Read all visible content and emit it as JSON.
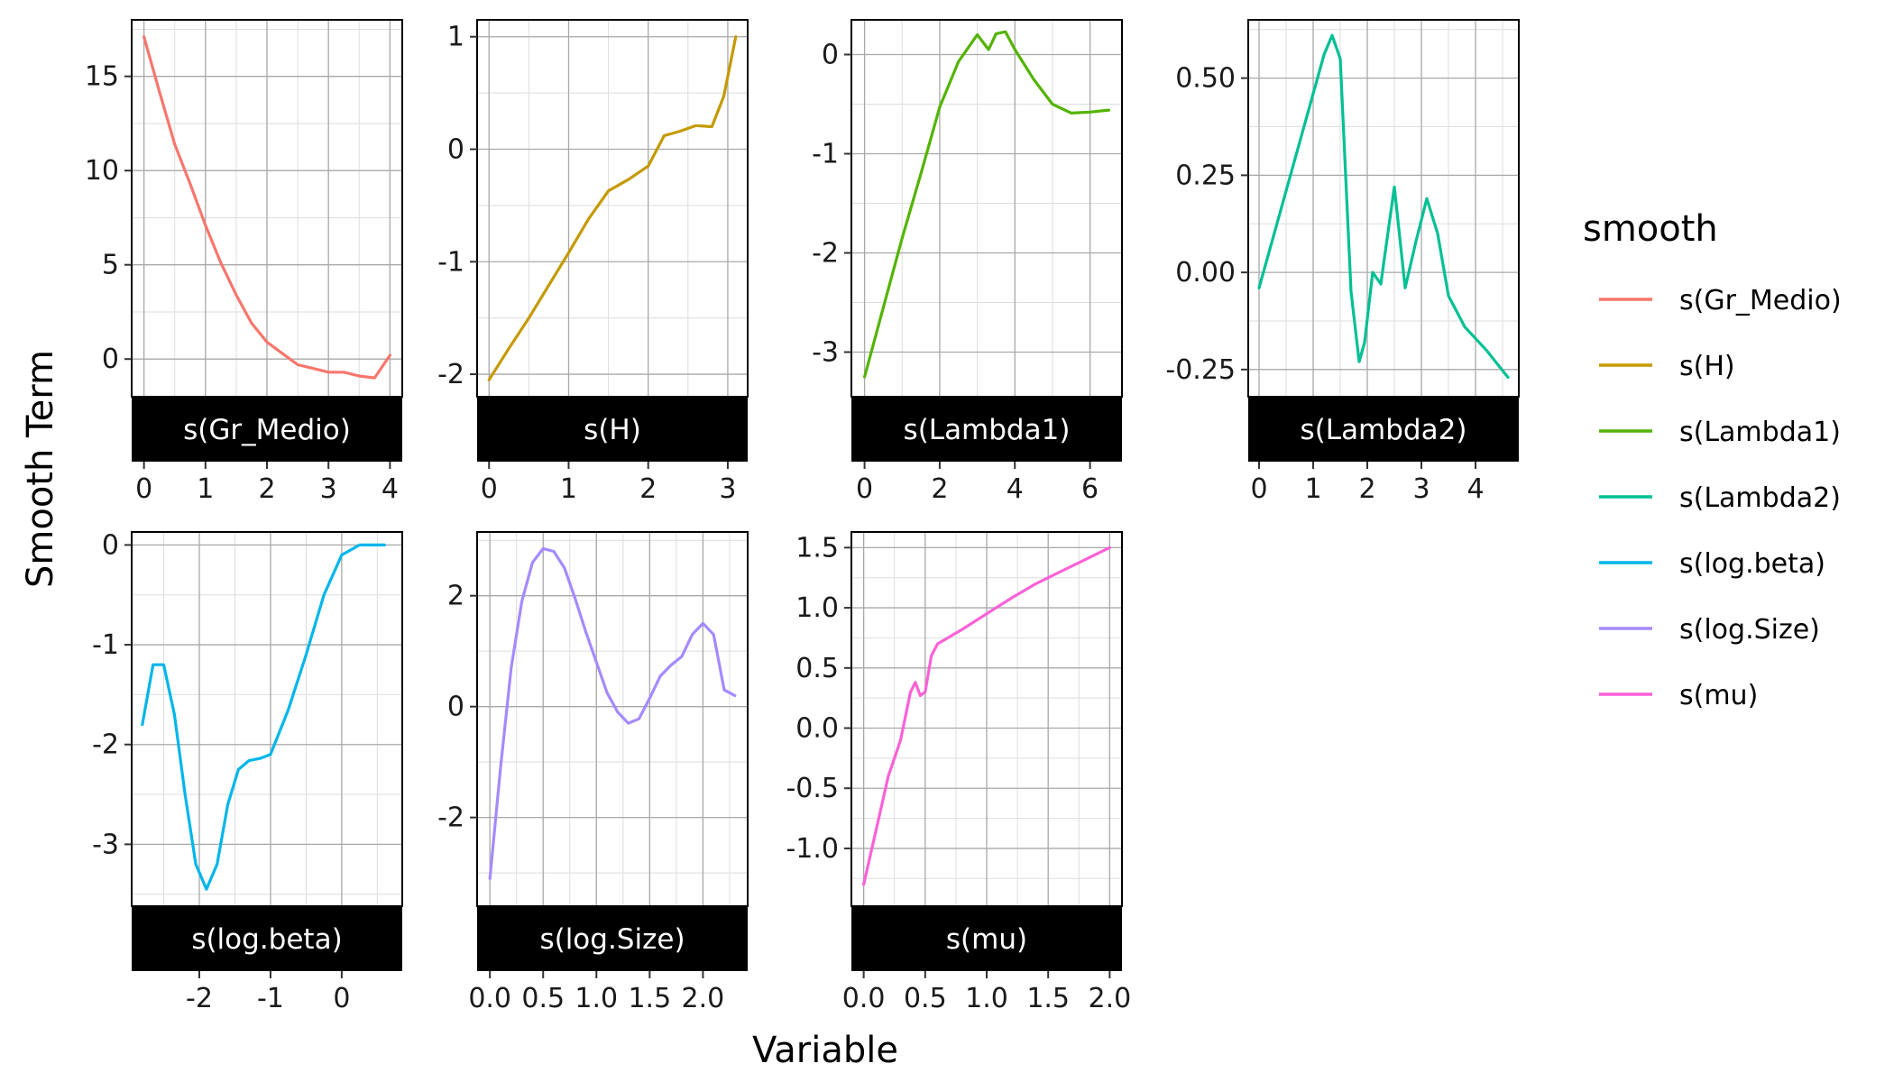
{
  "chart_data": {
    "type": "line",
    "xlabel": "Variable",
    "ylabel": "Smooth Term",
    "legend": {
      "title": "smooth",
      "position": "right"
    },
    "panels": [
      {
        "name": "s(Gr_Medio)",
        "color": "#F8766D",
        "xlim": [
          -0.2,
          4.2
        ],
        "ylim": [
          -2.0,
          18.0
        ],
        "xticks": [
          0,
          1,
          2,
          3,
          4
        ],
        "xticklabels": [
          "0",
          "1",
          "2",
          "3",
          "4"
        ],
        "yticks": [
          0,
          5,
          10,
          15
        ],
        "yticklabels": [
          "0",
          "5",
          "10",
          "15"
        ],
        "x": [
          0,
          0.25,
          0.5,
          0.75,
          1,
          1.25,
          1.5,
          1.75,
          2,
          2.25,
          2.5,
          2.75,
          3,
          3.25,
          3.5,
          3.75,
          4
        ],
        "y": [
          17.1,
          14.2,
          11.4,
          9.3,
          7.1,
          5.1,
          3.4,
          1.9,
          0.9,
          0.3,
          -0.3,
          -0.5,
          -0.7,
          -0.7,
          -0.9,
          -1.0,
          0.2
        ]
      },
      {
        "name": "s(H)",
        "color": "#C49A00",
        "xlim": [
          -0.15,
          3.25
        ],
        "ylim": [
          -2.2,
          1.15
        ],
        "xticks": [
          0,
          1,
          2,
          3
        ],
        "xticklabels": [
          "0",
          "1",
          "2",
          "3"
        ],
        "yticks": [
          -2,
          -1,
          0,
          1
        ],
        "yticklabels": [
          "-2",
          "-1",
          "0",
          "1"
        ],
        "x": [
          0,
          0.25,
          0.5,
          0.75,
          1,
          1.25,
          1.5,
          1.75,
          2,
          2.2,
          2.4,
          2.6,
          2.8,
          2.95,
          3.1
        ],
        "y": [
          -2.05,
          -1.77,
          -1.5,
          -1.21,
          -0.92,
          -0.62,
          -0.37,
          -0.27,
          -0.15,
          0.12,
          0.16,
          0.21,
          0.2,
          0.47,
          1.0
        ]
      },
      {
        "name": "s(Lambda1)",
        "color": "#53B400",
        "xlim": [
          -0.35,
          6.85
        ],
        "ylim": [
          -3.45,
          0.35
        ],
        "xticks": [
          0,
          2,
          4,
          6
        ],
        "xticklabels": [
          "0",
          "2",
          "4",
          "6"
        ],
        "yticks": [
          -3,
          -2,
          -1,
          0
        ],
        "yticklabels": [
          "-3",
          "-2",
          "-1",
          "0"
        ],
        "x": [
          0,
          0.5,
          1,
          1.5,
          2,
          2.5,
          3,
          3.3,
          3.5,
          3.75,
          4,
          4.5,
          5,
          5.5,
          6,
          6.5
        ],
        "y": [
          -3.25,
          -2.55,
          -1.85,
          -1.2,
          -0.53,
          -0.07,
          0.2,
          0.05,
          0.21,
          0.23,
          0.05,
          -0.25,
          -0.5,
          -0.59,
          -0.58,
          -0.56
        ]
      },
      {
        "name": "s(Lambda2)",
        "color": "#00C094",
        "xlim": [
          -0.2,
          4.8
        ],
        "ylim": [
          -0.32,
          0.65
        ],
        "xticks": [
          0,
          1,
          2,
          3,
          4
        ],
        "xticklabels": [
          "0",
          "1",
          "2",
          "3",
          "4"
        ],
        "yticks": [
          -0.25,
          0,
          0.25,
          0.5
        ],
        "yticklabels": [
          "-0.25",
          "0.00",
          "0.25",
          "0.50"
        ],
        "x": [
          0,
          0.4,
          0.8,
          1.2,
          1.35,
          1.5,
          1.7,
          1.85,
          1.95,
          2.1,
          2.25,
          2.5,
          2.7,
          2.9,
          3.1,
          3.3,
          3.5,
          3.8,
          4.2,
          4.6
        ],
        "y": [
          -0.04,
          0.16,
          0.36,
          0.56,
          0.61,
          0.55,
          -0.05,
          -0.23,
          -0.18,
          0.0,
          -0.03,
          0.22,
          -0.04,
          0.08,
          0.19,
          0.1,
          -0.06,
          -0.14,
          -0.2,
          -0.27
        ]
      },
      {
        "name": "s(log.beta)",
        "color": "#00B6EB",
        "xlim": [
          -2.95,
          0.85
        ],
        "ylim": [
          -3.62,
          0.13
        ],
        "xticks": [
          -2,
          -1,
          0
        ],
        "xticklabels": [
          "-2",
          "-1",
          "0"
        ],
        "yticks": [
          -3,
          -2,
          -1,
          0
        ],
        "yticklabels": [
          "-3",
          "-2",
          "-1",
          "0"
        ],
        "x": [
          -2.8,
          -2.65,
          -2.5,
          -2.35,
          -2.2,
          -2.05,
          -1.9,
          -1.75,
          -1.6,
          -1.45,
          -1.3,
          -1.15,
          -1.0,
          -0.75,
          -0.5,
          -0.25,
          0,
          0.25,
          0.6
        ],
        "y": [
          -1.8,
          -1.2,
          -1.2,
          -1.7,
          -2.5,
          -3.2,
          -3.45,
          -3.2,
          -2.6,
          -2.25,
          -2.16,
          -2.14,
          -2.1,
          -1.65,
          -1.1,
          -0.5,
          -0.1,
          0.0,
          0.0
        ]
      },
      {
        "name": "s(log.Size)",
        "color": "#A58AFF",
        "xlim": [
          -0.12,
          2.42
        ],
        "ylim": [
          -3.6,
          3.15
        ],
        "xticks": [
          0,
          0.5,
          1,
          1.5,
          2
        ],
        "xticklabels": [
          "0.0",
          "0.5",
          "1.0",
          "1.5",
          "2.0"
        ],
        "yticks": [
          -2,
          0,
          2
        ],
        "yticklabels": [
          "-2",
          "0",
          "2"
        ],
        "x": [
          0,
          0.1,
          0.2,
          0.3,
          0.4,
          0.5,
          0.6,
          0.7,
          0.8,
          0.9,
          1.0,
          1.1,
          1.2,
          1.3,
          1.4,
          1.5,
          1.6,
          1.7,
          1.8,
          1.9,
          2.0,
          2.1,
          2.2,
          2.3
        ],
        "y": [
          -3.1,
          -1.1,
          0.7,
          1.9,
          2.6,
          2.85,
          2.8,
          2.5,
          1.95,
          1.35,
          0.8,
          0.25,
          -0.1,
          -0.3,
          -0.22,
          0.15,
          0.55,
          0.75,
          0.9,
          1.3,
          1.5,
          1.3,
          0.3,
          0.2
        ]
      },
      {
        "name": "s(mu)",
        "color": "#FB61D7",
        "xlim": [
          -0.1,
          2.1
        ],
        "ylim": [
          -1.48,
          1.63
        ],
        "xticks": [
          0,
          0.5,
          1,
          1.5,
          2
        ],
        "xticklabels": [
          "0.0",
          "0.5",
          "1.0",
          "1.5",
          "2.0"
        ],
        "yticks": [
          -1,
          -0.5,
          0,
          0.5,
          1,
          1.5
        ],
        "yticklabels": [
          "-1.0",
          "-0.5",
          "0.0",
          "0.5",
          "1.0",
          "1.5"
        ],
        "x": [
          0,
          0.1,
          0.2,
          0.3,
          0.38,
          0.42,
          0.46,
          0.5,
          0.55,
          0.6,
          0.8,
          1.0,
          1.2,
          1.4,
          1.6,
          1.8,
          2.0
        ],
        "y": [
          -1.3,
          -0.85,
          -0.4,
          -0.1,
          0.3,
          0.38,
          0.27,
          0.3,
          0.6,
          0.7,
          0.82,
          0.95,
          1.08,
          1.2,
          1.3,
          1.4,
          1.5
        ]
      }
    ]
  }
}
